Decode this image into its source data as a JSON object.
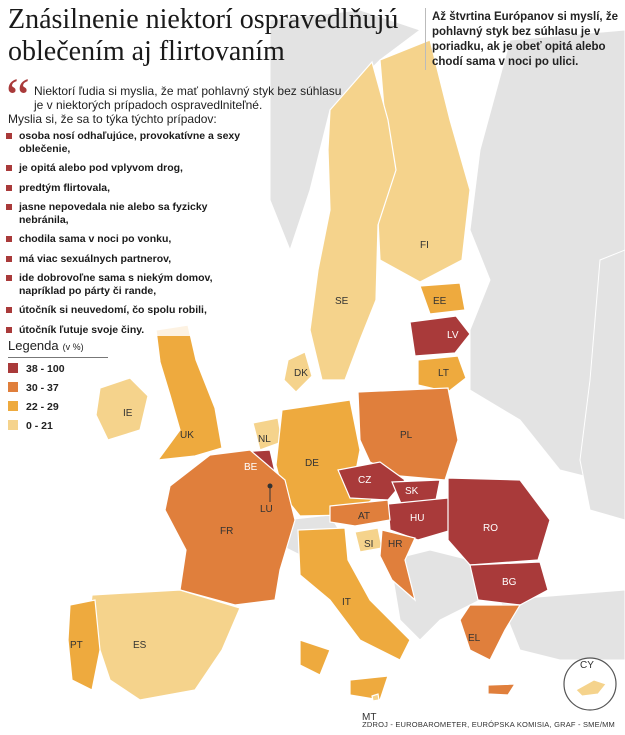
{
  "title": {
    "line1": "Znásilnenie niektorí ospravedlňujú",
    "line2": "oblečením aj flirtovaním"
  },
  "side_note": "Až štvrtina Európanov si myslí, že pohlavný styk bez súhlasu je v poriadku, ak je obeť opitá alebo chodí sama v noci po ulici.",
  "quote": {
    "mark": "“",
    "text": "Niektorí ľudia si myslia, že mať pohlavný styk bez súhlasu je v niektorých prípadoch ospravedlniteľné.",
    "subtext": "Myslia si, že sa to týka týchto prípadov:"
  },
  "cases": [
    "osoba nosí odhaľujúce, provokatívne a sexy oblečenie,",
    "je opitá alebo pod vplyvom drog,",
    "predtým flirtovala,",
    "jasne nepovedala nie alebo sa fyzicky nebránila,",
    "chodila sama v noci po vonku,",
    "má viac sexuálnych partnerov,",
    "ide dobrovoľne sama s niekým domov, napríklad po párty či rande,",
    "útočník si neuvedomí, čo spolu robili,",
    "útočník ľutuje svoje činy."
  ],
  "legend": {
    "title": "Legenda",
    "unit": "(v %)",
    "items": [
      {
        "label": "38 - 100",
        "color": "#a93a3a"
      },
      {
        "label": "30 - 37",
        "color": "#e07f3c"
      },
      {
        "label": "22 - 29",
        "color": "#eeaa3e"
      },
      {
        "label": "0 - 21",
        "color": "#f5d38c"
      }
    ]
  },
  "colors": {
    "cat1": "#a93a3a",
    "cat2": "#e07f3c",
    "cat3": "#eeaa3e",
    "cat4": "#f5d38c",
    "non_member": "#e3e3e3",
    "quote_accent": "#a93a3a"
  },
  "countries": [
    {
      "code": "FI",
      "band": "0 - 21"
    },
    {
      "code": "SE",
      "band": "0 - 21"
    },
    {
      "code": "EE",
      "band": "22 - 29"
    },
    {
      "code": "LV",
      "band": "38 - 100"
    },
    {
      "code": "LT",
      "band": "22 - 29"
    },
    {
      "code": "DK",
      "band": "0 - 21"
    },
    {
      "code": "IE",
      "band": "0 - 21"
    },
    {
      "code": "UK",
      "band": "22 - 29"
    },
    {
      "code": "NL",
      "band": "0 - 21"
    },
    {
      "code": "BE",
      "band": "38 - 100"
    },
    {
      "code": "LU",
      "band": "38 - 100"
    },
    {
      "code": "DE",
      "band": "22 - 29"
    },
    {
      "code": "PL",
      "band": "30 - 37"
    },
    {
      "code": "CZ",
      "band": "38 - 100"
    },
    {
      "code": "SK",
      "band": "38 - 100"
    },
    {
      "code": "HU",
      "band": "38 - 100"
    },
    {
      "code": "AT",
      "band": "30 - 37"
    },
    {
      "code": "SI",
      "band": "0 - 21"
    },
    {
      "code": "HR",
      "band": "30 - 37"
    },
    {
      "code": "RO",
      "band": "38 - 100"
    },
    {
      "code": "BG",
      "band": "38 - 100"
    },
    {
      "code": "FR",
      "band": "30 - 37"
    },
    {
      "code": "IT",
      "band": "22 - 29"
    },
    {
      "code": "ES",
      "band": "0 - 21"
    },
    {
      "code": "PT",
      "band": "22 - 29"
    },
    {
      "code": "EL",
      "band": "30 - 37"
    },
    {
      "code": "CY",
      "band": "0 - 21"
    },
    {
      "code": "MT",
      "band": "0 - 21"
    }
  ],
  "source": "ZDROJ - EUROBAROMETER, EURÓPSKA KOMISIA, GRAF - SME/MM"
}
